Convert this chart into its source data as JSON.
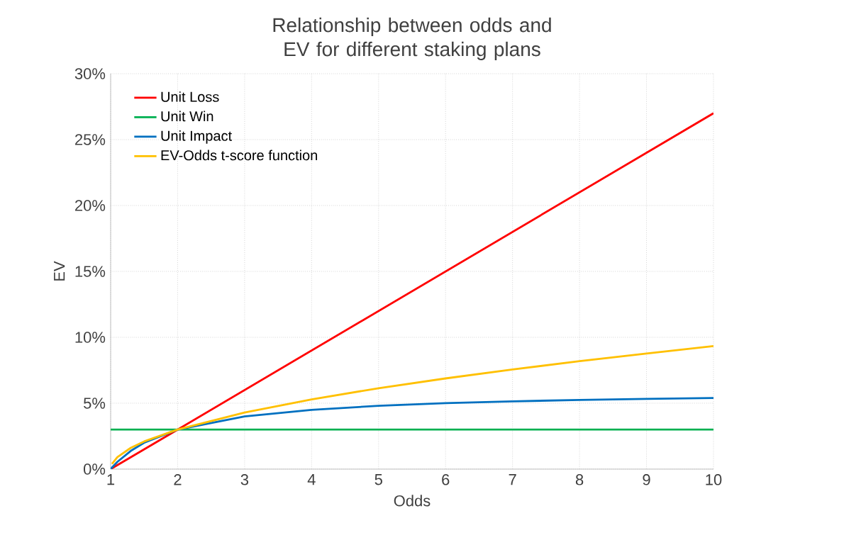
{
  "chart_data": {
    "type": "line",
    "title": "Relationship between odds and EV for different staking plans",
    "xlabel": "Odds",
    "ylabel": "EV",
    "xlim": [
      1,
      10
    ],
    "xticks": [
      1,
      2,
      3,
      4,
      5,
      6,
      7,
      8,
      9,
      10
    ],
    "ylim": [
      0,
      30
    ],
    "yticks": [
      {
        "value": 0,
        "label": "0%"
      },
      {
        "value": 5,
        "label": "5%"
      },
      {
        "value": 10,
        "label": "10%"
      },
      {
        "value": 15,
        "label": "15%"
      },
      {
        "value": 20,
        "label": "20%"
      },
      {
        "value": 25,
        "label": "25%"
      },
      {
        "value": 30,
        "label": "30%"
      }
    ],
    "grid": true,
    "legend": "top left",
    "marker": "none",
    "line_style": "solid",
    "series": [
      {
        "name": "Unit Loss",
        "color": "#ff0000",
        "x": [
          1,
          2,
          10
        ],
        "values": [
          0,
          3,
          27
        ]
      },
      {
        "name": "Unit Win",
        "color": "#00b050",
        "x": [
          1,
          10
        ],
        "values": [
          3,
          3
        ]
      },
      {
        "name": "Unit Impact",
        "color": "#0070c0",
        "x": [
          1,
          1.02,
          1.1,
          1.3,
          1.5,
          2,
          3,
          4,
          5,
          6,
          7,
          8,
          9,
          10
        ],
        "values": [
          0,
          0.12,
          0.55,
          1.38,
          2.0,
          3,
          4,
          4.5,
          4.8,
          5.0,
          5.14,
          5.25,
          5.33,
          5.4
        ]
      },
      {
        "name": "EV-Odds t-score function",
        "color": "#ffc000",
        "x": [
          1.02,
          1.1,
          1.3,
          1.5,
          2,
          3,
          4,
          5,
          6,
          7,
          8,
          9,
          10
        ],
        "values": [
          0.4,
          0.91,
          1.61,
          2.1,
          3,
          4.29,
          5.29,
          6.14,
          6.88,
          7.56,
          8.19,
          8.77,
          9.33
        ]
      }
    ]
  }
}
